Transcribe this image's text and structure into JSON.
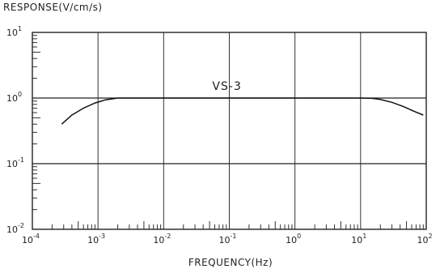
{
  "chart_data": {
    "type": "line",
    "title": "",
    "ylabel": "RESPONSE(V/cm/s)",
    "xlabel": "FREQUENCY(Hz)",
    "x_scale": "log",
    "y_scale": "log",
    "xlim": [
      0.0001,
      100
    ],
    "ylim": [
      0.01,
      10
    ],
    "grid": true,
    "x_ticks": [
      {
        "base": "10",
        "exp": "-4",
        "value": 0.0001
      },
      {
        "base": "10",
        "exp": "-3",
        "value": 0.001
      },
      {
        "base": "10",
        "exp": "-2",
        "value": 0.01
      },
      {
        "base": "10",
        "exp": "-1",
        "value": 0.1
      },
      {
        "base": "10",
        "exp": "0",
        "value": 1
      },
      {
        "base": "10",
        "exp": "1",
        "value": 10
      },
      {
        "base": "10",
        "exp": "2",
        "value": 100
      }
    ],
    "y_ticks": [
      {
        "base": "10",
        "exp": "1",
        "value": 10
      },
      {
        "base": "10",
        "exp": "0",
        "value": 1
      },
      {
        "base": "10",
        "exp": "-1",
        "value": 0.1
      },
      {
        "base": "10",
        "exp": "-2",
        "value": 0.01
      }
    ],
    "series": [
      {
        "name": "VS-3",
        "x": [
          0.00028,
          0.0004,
          0.0006,
          0.0009,
          0.0013,
          0.002,
          0.003,
          0.01,
          0.1,
          1,
          10,
          15,
          20,
          30,
          45,
          65,
          90
        ],
        "y": [
          0.4,
          0.55,
          0.7,
          0.84,
          0.94,
          1.0,
          1.0,
          1.0,
          1.0,
          1.0,
          1.0,
          0.99,
          0.95,
          0.86,
          0.74,
          0.63,
          0.55
        ]
      }
    ],
    "hlines": [
      1,
      0.1
    ]
  }
}
